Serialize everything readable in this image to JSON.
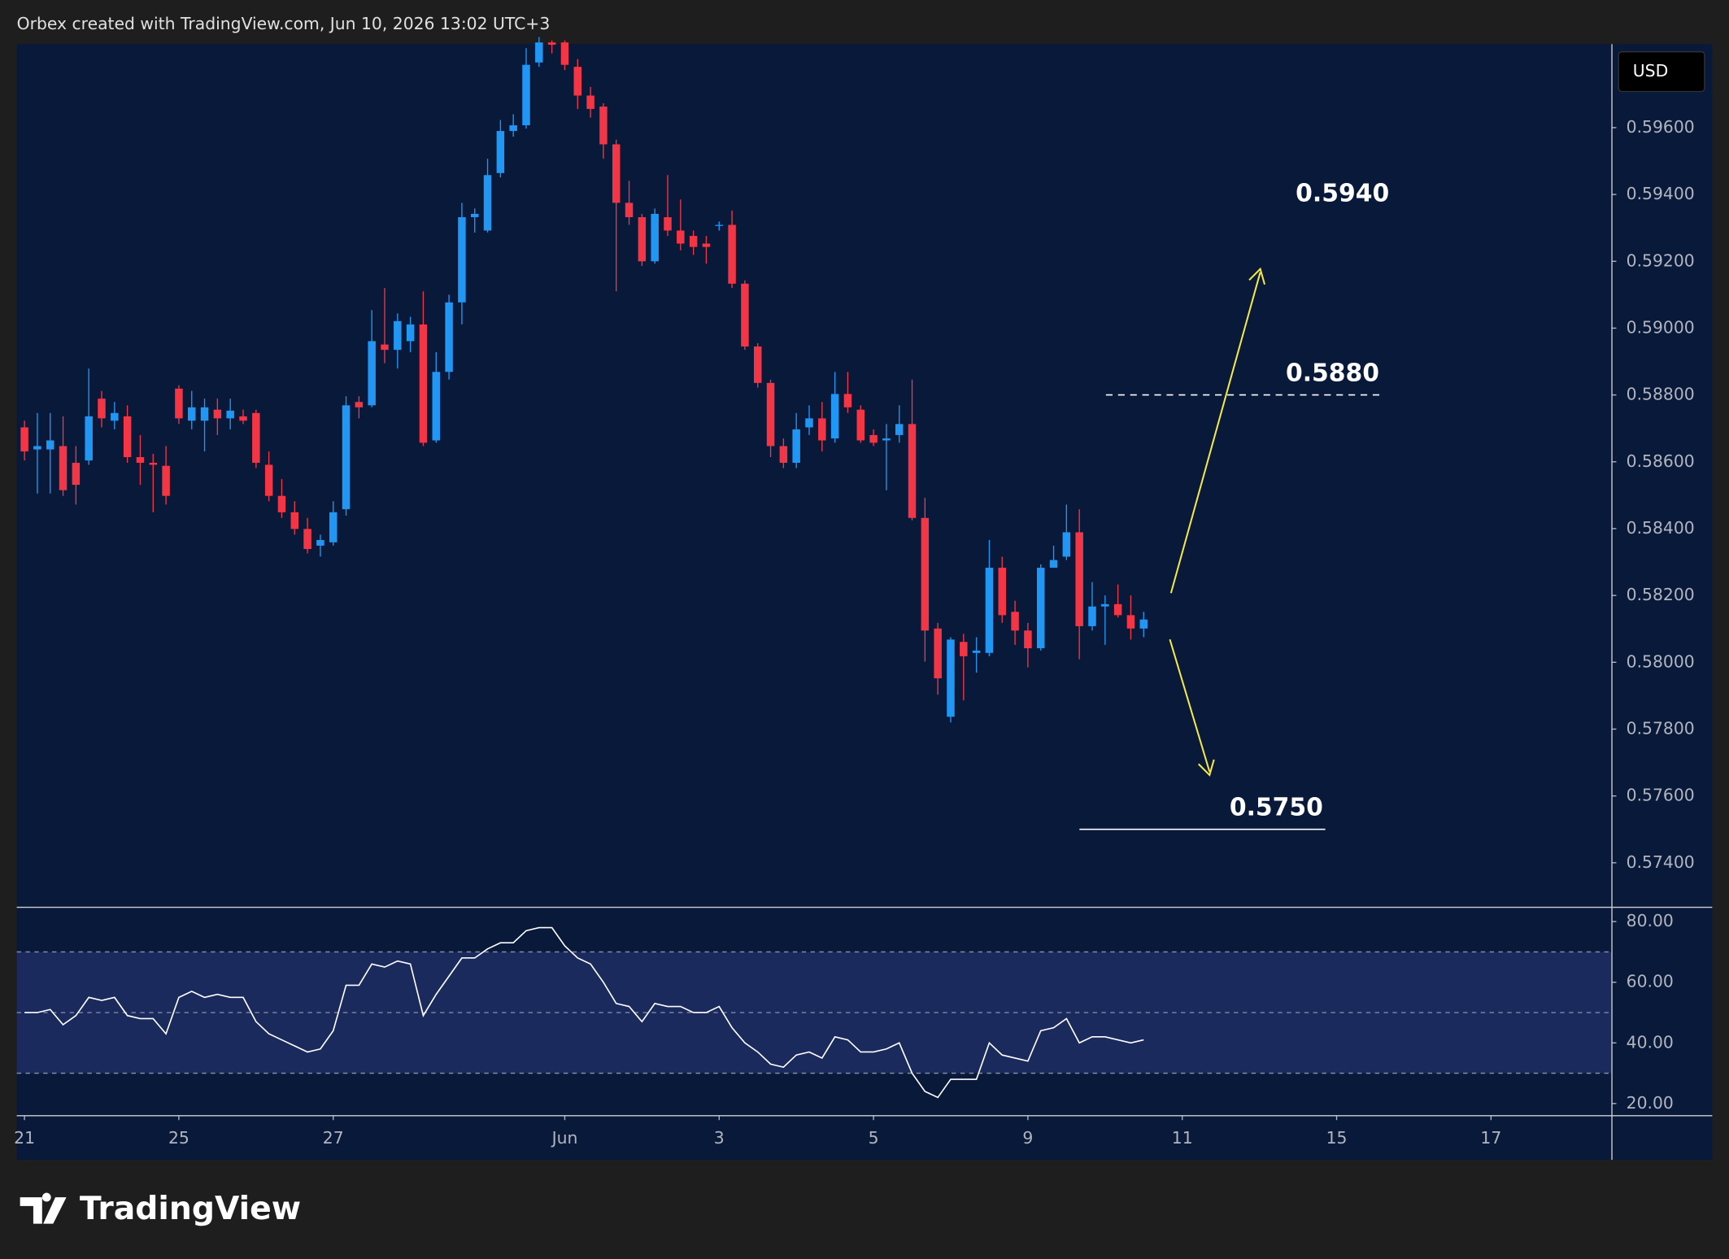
{
  "header": {
    "title": "Orbex created with TradingView.com, Jun 10, 2026 13:02 UTC+3",
    "currency": "USD"
  },
  "footer": {
    "logo": "TradingView"
  },
  "chart_data": [
    {
      "type": "candlestick",
      "up_color": "#2196f3",
      "down_color": "#f23645",
      "categories": [
        null,
        null,
        null,
        null,
        null,
        null,
        null,
        null,
        null,
        null,
        null,
        null,
        null,
        null,
        null,
        null,
        null,
        null,
        null,
        null,
        null,
        null,
        null,
        null,
        null,
        null,
        null,
        null,
        null,
        null,
        null,
        null,
        null,
        null,
        null,
        null,
        null,
        null,
        null,
        null,
        null,
        null,
        null,
        null,
        null,
        null,
        null,
        null,
        null,
        null,
        null,
        null,
        null,
        null,
        null,
        null,
        null,
        null,
        null,
        null,
        null,
        null,
        null,
        null,
        null,
        null,
        null,
        null,
        null,
        null,
        null,
        null,
        null,
        null,
        null,
        null,
        null,
        null,
        null,
        null,
        null,
        null,
        null,
        null,
        null,
        null,
        null,
        null
      ],
      "open": [
        0.58703,
        0.58637,
        0.58637,
        0.58647,
        0.58597,
        0.58604,
        0.58789,
        0.58723,
        0.58736,
        0.58614,
        0.58597,
        0.58588,
        0.58819,
        0.58723,
        0.58723,
        0.58756,
        0.5873,
        0.58736,
        0.58746,
        0.58591,
        0.58498,
        0.58449,
        0.58399,
        0.58349,
        0.58359,
        0.58458,
        0.58779,
        0.58769,
        0.58951,
        0.58935,
        0.58961,
        0.59011,
        0.58664,
        0.58869,
        0.59077,
        0.59332,
        0.59292,
        0.59464,
        0.5959,
        0.59607,
        0.59795,
        0.59855,
        0.59855,
        0.59782,
        0.59696,
        0.59663,
        0.5955,
        0.59375,
        0.59332,
        0.592,
        0.59332,
        0.59292,
        0.59276,
        0.59253,
        0.59309,
        0.59309,
        0.59133,
        0.58945,
        0.58836,
        0.58647,
        0.58597,
        0.58703,
        0.5873,
        0.5867,
        0.58803,
        0.58756,
        0.5868,
        0.58664,
        0.5868,
        0.58713,
        0.58432,
        0.58101,
        0.57837,
        0.58061,
        0.58028,
        0.58028,
        0.58283,
        0.58151,
        0.58095,
        0.58042,
        0.58283,
        0.58316,
        0.58389,
        0.58108,
        0.58167,
        0.58174,
        0.58141,
        0.58101
      ],
      "high": [
        0.58723,
        0.58746,
        0.58746,
        0.58736,
        0.58647,
        0.58879,
        0.58812,
        0.58779,
        0.58769,
        0.5868,
        0.58624,
        0.58647,
        0.58829,
        0.58812,
        0.58789,
        0.58789,
        0.58789,
        0.58756,
        0.58756,
        0.58631,
        0.58548,
        0.58482,
        0.58432,
        0.58382,
        0.58482,
        0.58796,
        0.58796,
        0.59054,
        0.5912,
        0.59044,
        0.59034,
        0.5911,
        0.58928,
        0.591,
        0.59375,
        0.59358,
        0.59507,
        0.59623,
        0.5964,
        0.59838,
        0.59871,
        0.59861,
        0.59861,
        0.59805,
        0.59722,
        0.59673,
        0.59564,
        0.59441,
        0.59342,
        0.59358,
        0.59458,
        0.59385,
        0.59292,
        0.59276,
        0.59319,
        0.59352,
        0.59143,
        0.58955,
        0.58846,
        0.5867,
        0.58746,
        0.58769,
        0.58779,
        0.58869,
        0.58869,
        0.58769,
        0.58697,
        0.58713,
        0.58769,
        0.58846,
        0.58492,
        0.58118,
        0.58075,
        0.58085,
        0.58075,
        0.58366,
        0.58316,
        0.58184,
        0.58118,
        0.58293,
        0.58349,
        0.58472,
        0.58458,
        0.5824,
        0.582,
        0.58233,
        0.582,
        0.58151
      ],
      "low": [
        0.58604,
        0.58505,
        0.58505,
        0.58498,
        0.58472,
        0.58591,
        0.58703,
        0.58697,
        0.58597,
        0.58531,
        0.58449,
        0.58472,
        0.58713,
        0.58697,
        0.58631,
        0.5868,
        0.58697,
        0.58713,
        0.58581,
        0.58482,
        0.58432,
        0.58382,
        0.58326,
        0.58316,
        0.58349,
        0.58439,
        0.5873,
        0.58763,
        0.58895,
        0.58879,
        0.58928,
        0.58647,
        0.58657,
        0.58846,
        0.59011,
        0.59286,
        0.59286,
        0.59451,
        0.59573,
        0.59597,
        0.59782,
        0.59822,
        0.59772,
        0.59656,
        0.5963,
        0.59507,
        0.5911,
        0.59309,
        0.59186,
        0.59193,
        0.59276,
        0.59233,
        0.59219,
        0.59193,
        0.59292,
        0.5912,
        0.58935,
        0.58822,
        0.58614,
        0.58581,
        0.58581,
        0.5868,
        0.58631,
        0.58657,
        0.58746,
        0.58657,
        0.58647,
        0.58515,
        0.58657,
        0.58425,
        0.58002,
        0.57903,
        0.5782,
        0.57886,
        0.57969,
        0.58018,
        0.58118,
        0.58052,
        0.57985,
        0.58035,
        0.58283,
        0.58306,
        0.58009,
        0.58095,
        0.58052,
        0.58134,
        0.58068,
        0.58075
      ],
      "close": [
        0.58631,
        0.58647,
        0.58664,
        0.58515,
        0.58531,
        0.58736,
        0.5873,
        0.58746,
        0.58614,
        0.58597,
        0.58591,
        0.58498,
        0.5873,
        0.58763,
        0.58763,
        0.5873,
        0.58753,
        0.58723,
        0.58597,
        0.58498,
        0.58449,
        0.58399,
        0.58339,
        0.58366,
        0.58449,
        0.58769,
        0.58763,
        0.58961,
        0.58935,
        0.59021,
        0.59011,
        0.58657,
        0.58869,
        0.59077,
        0.59332,
        0.59342,
        0.59458,
        0.5959,
        0.59607,
        0.59788,
        0.59855,
        0.59848,
        0.59788,
        0.59696,
        0.59656,
        0.5955,
        0.59375,
        0.59332,
        0.592,
        0.59342,
        0.59292,
        0.59253,
        0.59243,
        0.59243,
        0.59309,
        0.59133,
        0.58945,
        0.58836,
        0.58647,
        0.58597,
        0.58697,
        0.5873,
        0.58664,
        0.58803,
        0.58763,
        0.58664,
        0.58657,
        0.5867,
        0.58713,
        0.58432,
        0.58095,
        0.57952,
        0.58068,
        0.58018,
        0.58035,
        0.58283,
        0.58141,
        0.58095,
        0.58042,
        0.58283,
        0.58306,
        0.58389,
        0.58108,
        0.58167,
        0.58174,
        0.58141,
        0.58101,
        0.58128
      ],
      "ylim": [
        0.5727,
        0.5985
      ],
      "yticks": [
        {
          "value": 0.574,
          "label": "0.57400"
        },
        {
          "value": 0.576,
          "label": "0.57600"
        },
        {
          "value": 0.578,
          "label": "0.57800"
        },
        {
          "value": 0.58,
          "label": "0.58000"
        },
        {
          "value": 0.582,
          "label": "0.58200"
        },
        {
          "value": 0.584,
          "label": "0.58400"
        },
        {
          "value": 0.586,
          "label": "0.58600"
        },
        {
          "value": 0.588,
          "label": "0.58800"
        },
        {
          "value": 0.59,
          "label": "0.59000"
        },
        {
          "value": 0.592,
          "label": "0.59200"
        },
        {
          "value": 0.594,
          "label": "0.59400"
        },
        {
          "value": 0.596,
          "label": "0.59600"
        }
      ],
      "xlim": [
        -0.6,
        123.4
      ],
      "xticks": [
        {
          "value": 0,
          "label": "21"
        },
        {
          "value": 12,
          "label": "25"
        },
        {
          "value": 24,
          "label": "27"
        },
        {
          "value": 42,
          "label": "Jun"
        },
        {
          "value": 54,
          "label": "3"
        },
        {
          "value": 66,
          "label": "5"
        },
        {
          "value": 78,
          "label": "9"
        },
        {
          "value": 90,
          "label": "11"
        },
        {
          "value": 102,
          "label": "15"
        },
        {
          "value": 114,
          "label": "17"
        }
      ],
      "grid": false,
      "annotations": [
        {
          "value": 0.594,
          "label": "0.5940"
        },
        {
          "value": 0.588,
          "label": "0.5880",
          "line": "dashed"
        },
        {
          "value": 0.575,
          "label": "0.5750",
          "line": "solid"
        }
      ]
    },
    {
      "type": "line",
      "color": "#ffffff",
      "values": [
        50,
        50,
        51,
        46,
        49,
        55,
        54,
        55,
        49,
        48,
        48,
        43,
        55,
        57,
        55,
        56,
        55,
        55,
        47,
        43,
        41,
        39,
        37,
        38,
        44,
        59,
        59,
        66,
        65,
        67,
        66,
        49,
        56,
        62,
        68,
        68,
        71,
        73,
        73,
        77,
        78,
        78,
        72,
        68,
        66,
        60,
        53,
        52,
        47,
        53,
        52,
        52,
        50,
        50,
        52,
        45,
        40,
        37,
        33,
        32,
        36,
        37,
        35,
        42,
        41,
        37,
        37,
        38,
        40,
        30,
        24,
        22,
        28,
        28,
        28,
        40,
        36,
        35,
        34,
        44,
        45,
        48,
        40,
        42,
        42,
        41,
        40,
        41
      ],
      "ylim": [
        16,
        84.7
      ],
      "yticks": [
        {
          "value": 20,
          "label": "20.00"
        },
        {
          "value": 40,
          "label": "40.00"
        },
        {
          "value": 60,
          "label": "60.00"
        },
        {
          "value": 80,
          "label": "80.00"
        }
      ],
      "levels": [
        30,
        50,
        70
      ]
    }
  ]
}
